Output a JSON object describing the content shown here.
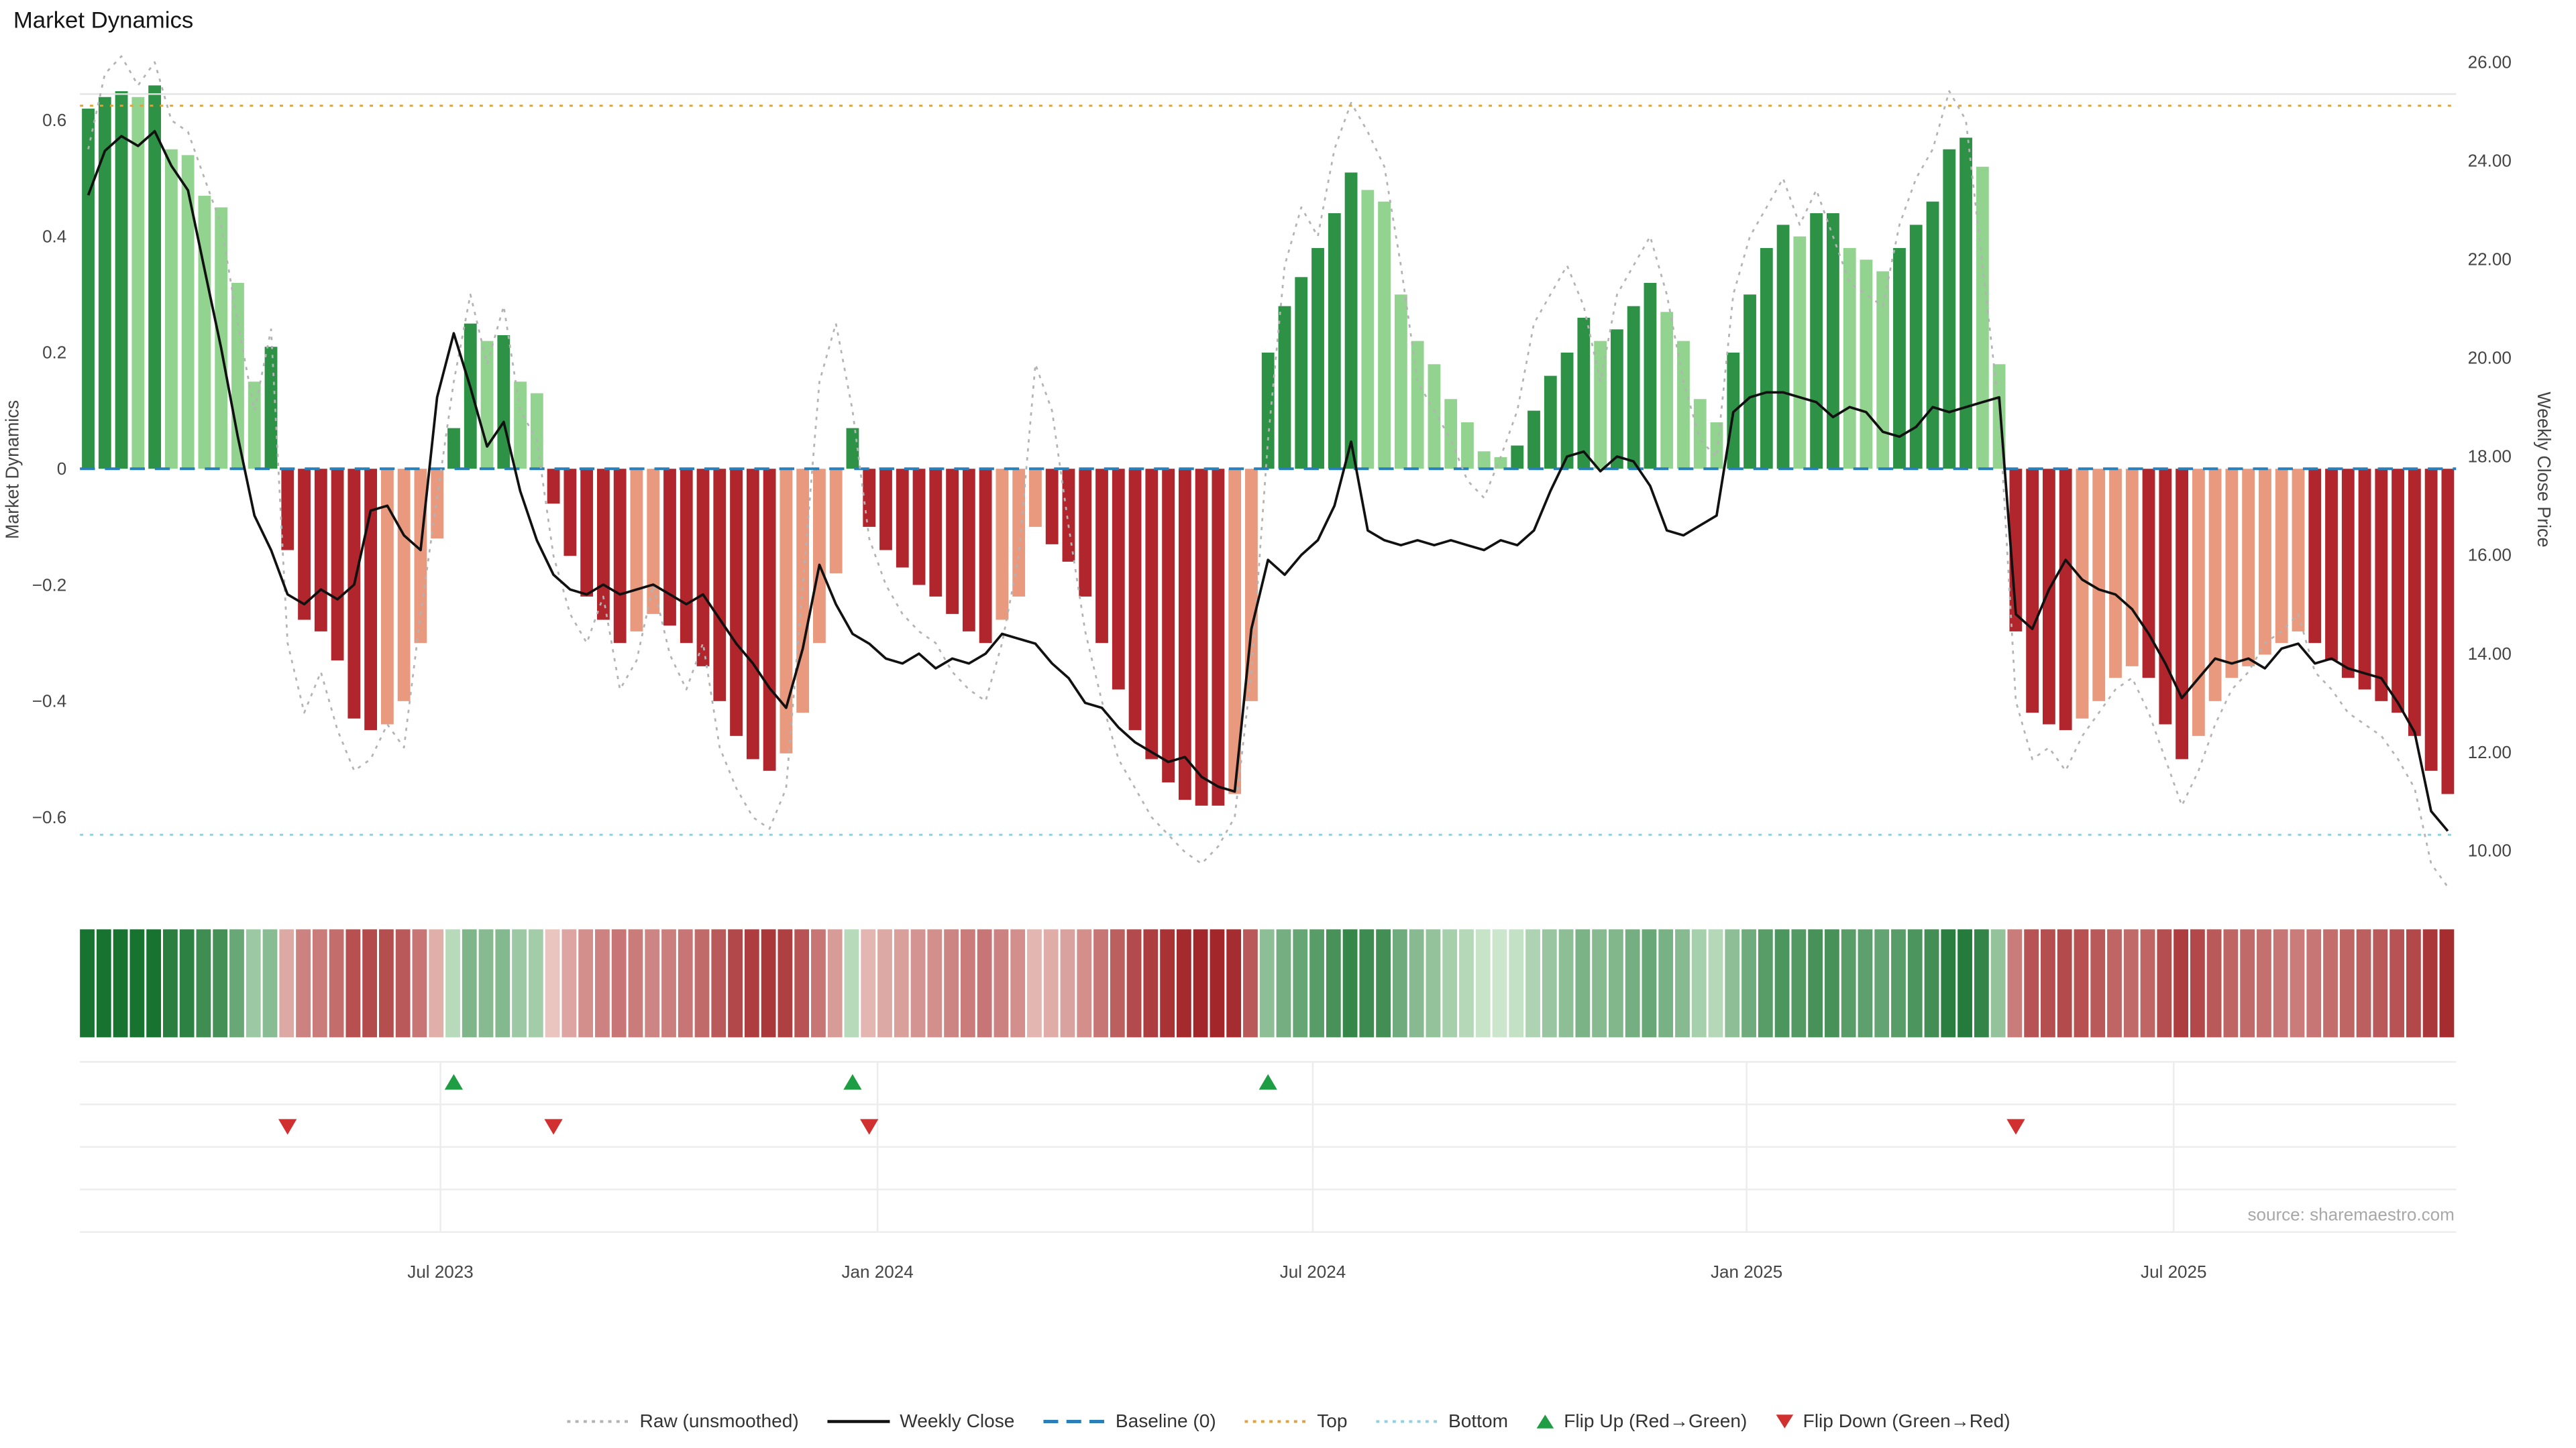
{
  "title": "Market Dynamics",
  "source": "source: sharemaestro.com",
  "left_axis": {
    "label": "Market Dynamics",
    "ticks": [
      "0.6",
      "0.4",
      "0.2",
      "0",
      "−0.2",
      "−0.4",
      "−0.6"
    ],
    "values": [
      0.6,
      0.4,
      0.2,
      0,
      -0.2,
      -0.4,
      -0.6
    ]
  },
  "right_axis": {
    "label": "Weekly Close Price",
    "ticks": [
      "26.00",
      "24.00",
      "22.00",
      "20.00",
      "18.00",
      "16.00",
      "14.00",
      "12.00",
      "10.00"
    ],
    "values": [
      26,
      24,
      22,
      20,
      18,
      16,
      14,
      12,
      10
    ]
  },
  "x_axis": {
    "ticks": [
      {
        "label": "Jul 2023",
        "week": 21.2
      },
      {
        "label": "Jan 2024",
        "week": 47.5
      },
      {
        "label": "Jul 2024",
        "week": 73.7
      },
      {
        "label": "Jan 2025",
        "week": 99.8
      },
      {
        "label": "Jul 2025",
        "week": 125.5
      }
    ]
  },
  "colors": {
    "green_strong": "#2d9246",
    "green_soft": "#93d390",
    "red_strong": "#b0262c",
    "red_soft": "#e8997e",
    "baseline": "#2b7fb8",
    "top": "#e2a23b",
    "bottom": "#8fd0e2",
    "raw": "#b3b3b3",
    "price": "#111111",
    "flip_up": "#1f9d44",
    "flip_down": "#d03030",
    "grid": "#ececec",
    "text": "#333333"
  },
  "legend": {
    "items": [
      {
        "label": "Raw (unsmoothed)"
      },
      {
        "label": "Weekly Close"
      },
      {
        "label": "Baseline (0)"
      },
      {
        "label": "Top"
      },
      {
        "label": "Bottom"
      },
      {
        "label": "Flip Up (Red→Green)"
      },
      {
        "label": "Flip Down (Green→Red)"
      }
    ]
  },
  "chart_data": {
    "type": "bar",
    "title": "Market Dynamics",
    "xlabel": "",
    "ylabel_left": "Market Dynamics",
    "ylabel_right": "Weekly Close Price",
    "ylim_left": [
      -0.7,
      0.7
    ],
    "ylim_right": [
      9.5,
      26
    ],
    "x_unit": "week",
    "n_weeks": 143,
    "x_tick_labels": [
      "Jul 2023",
      "Jan 2024",
      "Jul 2024",
      "Jan 2025",
      "Jul 2025"
    ],
    "baseline": 0,
    "top_threshold": 0.63,
    "bottom_threshold": -0.63,
    "flip_up_weeks": [
      22,
      46,
      71
    ],
    "flip_down_weeks": [
      12,
      28,
      47,
      116
    ],
    "series": [
      {
        "name": "Market Dynamics",
        "type": "bar",
        "axis": "left",
        "values": [
          0.62,
          0.64,
          0.65,
          0.64,
          0.66,
          0.55,
          0.54,
          0.47,
          0.45,
          0.32,
          0.15,
          0.21,
          -0.14,
          -0.26,
          -0.28,
          -0.33,
          -0.43,
          -0.45,
          -0.44,
          -0.4,
          -0.3,
          -0.12,
          0.07,
          0.25,
          0.22,
          0.23,
          0.15,
          0.13,
          -0.06,
          -0.15,
          -0.22,
          -0.26,
          -0.3,
          -0.28,
          -0.25,
          -0.27,
          -0.3,
          -0.34,
          -0.4,
          -0.46,
          -0.5,
          -0.52,
          -0.49,
          -0.42,
          -0.3,
          -0.18,
          0.07,
          -0.1,
          -0.14,
          -0.17,
          -0.2,
          -0.22,
          -0.25,
          -0.28,
          -0.3,
          -0.26,
          -0.22,
          -0.1,
          -0.13,
          -0.16,
          -0.22,
          -0.3,
          -0.38,
          -0.45,
          -0.5,
          -0.54,
          -0.57,
          -0.58,
          -0.58,
          -0.56,
          -0.4,
          0.2,
          0.28,
          0.33,
          0.38,
          0.44,
          0.51,
          0.48,
          0.46,
          0.3,
          0.22,
          0.18,
          0.12,
          0.08,
          0.03,
          0.02,
          0.04,
          0.1,
          0.16,
          0.2,
          0.26,
          0.22,
          0.24,
          0.28,
          0.32,
          0.27,
          0.22,
          0.12,
          0.08,
          0.2,
          0.3,
          0.38,
          0.42,
          0.4,
          0.44,
          0.44,
          0.38,
          0.36,
          0.34,
          0.38,
          0.42,
          0.46,
          0.55,
          0.57,
          0.52,
          0.18,
          -0.28,
          -0.42,
          -0.44,
          -0.45,
          -0.43,
          -0.4,
          -0.36,
          -0.34,
          -0.36,
          -0.44,
          -0.5,
          -0.46,
          -0.4,
          -0.36,
          -0.34,
          -0.32,
          -0.3,
          -0.28,
          -0.3,
          -0.33,
          -0.36,
          -0.38,
          -0.4,
          -0.42,
          -0.46,
          -0.52,
          -0.56
        ]
      },
      {
        "name": "Raw (unsmoothed)",
        "type": "line",
        "style": "dotted",
        "axis": "left",
        "values": [
          0.55,
          0.68,
          0.71,
          0.66,
          0.7,
          0.6,
          0.58,
          0.5,
          0.42,
          0.25,
          0.1,
          0.24,
          -0.3,
          -0.42,
          -0.35,
          -0.45,
          -0.52,
          -0.5,
          -0.44,
          -0.48,
          -0.25,
          -0.05,
          0.15,
          0.3,
          0.18,
          0.28,
          0.1,
          0.05,
          -0.15,
          -0.25,
          -0.3,
          -0.22,
          -0.38,
          -0.33,
          -0.2,
          -0.32,
          -0.38,
          -0.3,
          -0.48,
          -0.55,
          -0.6,
          -0.62,
          -0.55,
          -0.2,
          0.15,
          0.25,
          0.1,
          -0.12,
          -0.2,
          -0.25,
          -0.28,
          -0.3,
          -0.35,
          -0.38,
          -0.4,
          -0.3,
          -0.15,
          0.18,
          0.1,
          -0.1,
          -0.28,
          -0.4,
          -0.5,
          -0.55,
          -0.6,
          -0.63,
          -0.66,
          -0.68,
          -0.65,
          -0.6,
          -0.35,
          0.05,
          0.35,
          0.45,
          0.4,
          0.55,
          0.63,
          0.58,
          0.52,
          0.35,
          0.15,
          0.1,
          0.05,
          -0.02,
          -0.05,
          0.02,
          0.1,
          0.25,
          0.3,
          0.35,
          0.28,
          0.15,
          0.3,
          0.35,
          0.4,
          0.3,
          0.15,
          0.05,
          0.02,
          0.3,
          0.4,
          0.45,
          0.5,
          0.42,
          0.48,
          0.4,
          0.32,
          0.3,
          0.28,
          0.42,
          0.5,
          0.55,
          0.65,
          0.6,
          0.35,
          0.1,
          -0.4,
          -0.5,
          -0.48,
          -0.52,
          -0.46,
          -0.42,
          -0.38,
          -0.36,
          -0.42,
          -0.5,
          -0.58,
          -0.52,
          -0.44,
          -0.38,
          -0.35,
          -0.3,
          -0.28,
          -0.25,
          -0.35,
          -0.38,
          -0.42,
          -0.44,
          -0.46,
          -0.5,
          -0.55,
          -0.68,
          -0.72
        ]
      },
      {
        "name": "Weekly Close",
        "type": "line",
        "axis": "right",
        "values": [
          23.3,
          24.2,
          24.5,
          24.3,
          24.6,
          23.9,
          23.4,
          21.8,
          20.2,
          18.4,
          16.8,
          16.1,
          15.2,
          15.0,
          15.3,
          15.1,
          15.4,
          16.9,
          17.0,
          16.4,
          16.1,
          19.2,
          20.5,
          19.4,
          18.2,
          18.7,
          17.3,
          16.3,
          15.6,
          15.3,
          15.2,
          15.4,
          15.2,
          15.3,
          15.4,
          15.2,
          15.0,
          15.2,
          14.7,
          14.2,
          13.8,
          13.3,
          12.9,
          14.1,
          15.8,
          15.0,
          14.4,
          14.2,
          13.9,
          13.8,
          14.0,
          13.7,
          13.9,
          13.8,
          14.0,
          14.4,
          14.3,
          14.2,
          13.8,
          13.5,
          13.0,
          12.9,
          12.5,
          12.2,
          12.0,
          11.8,
          11.9,
          11.5,
          11.3,
          11.2,
          14.5,
          15.9,
          15.6,
          16.0,
          16.3,
          17.0,
          18.3,
          16.5,
          16.3,
          16.2,
          16.3,
          16.2,
          16.3,
          16.2,
          16.1,
          16.3,
          16.2,
          16.5,
          17.3,
          18.0,
          18.1,
          17.7,
          18.0,
          17.9,
          17.4,
          16.5,
          16.4,
          16.6,
          16.8,
          18.9,
          19.2,
          19.3,
          19.3,
          19.2,
          19.1,
          18.8,
          19.0,
          18.9,
          18.5,
          18.4,
          18.6,
          19.0,
          18.9,
          19.0,
          19.1,
          19.2,
          14.8,
          14.5,
          15.3,
          15.9,
          15.5,
          15.3,
          15.2,
          14.9,
          14.4,
          13.8,
          13.1,
          13.5,
          13.9,
          13.8,
          13.9,
          13.7,
          14.1,
          14.2,
          13.8,
          13.9,
          13.7,
          13.6,
          13.5,
          13.0,
          12.4,
          10.8,
          10.4
        ]
      }
    ]
  }
}
